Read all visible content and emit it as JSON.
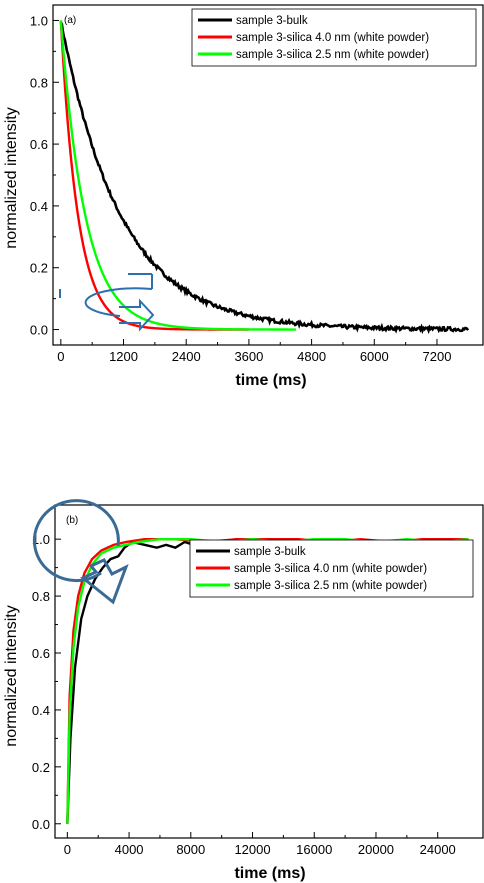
{
  "chart_data": [
    {
      "type": "line",
      "panel_label": "(a)",
      "xlabel": "time (ms)",
      "ylabel": "normalized intensity",
      "xlim": [
        -150,
        8100
      ],
      "ylim": [
        -0.05,
        1.05
      ],
      "xticks": [
        0,
        1200,
        2400,
        3600,
        4800,
        6000,
        7200
      ],
      "yticks": [
        0.0,
        0.2,
        0.4,
        0.6,
        0.8,
        1.0
      ],
      "ytick_labels": [
        "0.0",
        "0.2",
        "0.4",
        "0.6",
        "0.8",
        "1.0"
      ],
      "legend_position": "top-right",
      "series": [
        {
          "name": "sample 3-bulk",
          "color": "#000000",
          "tau": 1150,
          "x_end": 7800,
          "noise": 0.006
        },
        {
          "name": "sample 3-silica 4.0 nm (white powder)",
          "color": "#ff0000",
          "tau": 330,
          "x_end": 3600,
          "noise": 0
        },
        {
          "name": "sample 3-silica 2.5 nm (white powder)",
          "color": "#00ff00",
          "tau": 470,
          "x_end": 4500,
          "noise": 0
        }
      ]
    },
    {
      "type": "line",
      "panel_label": "(b)",
      "xlabel": "time (ms)",
      "ylabel": "normalized intensity",
      "xlim": [
        -800,
        27000
      ],
      "ylim": [
        -0.05,
        1.12
      ],
      "xticks": [
        0,
        4000,
        8000,
        12000,
        16000,
        20000,
        24000
      ],
      "yticks": [
        0.0,
        0.2,
        0.4,
        0.6,
        0.8,
        1.0
      ],
      "ytick_labels": [
        "0.0",
        "0.2",
        "0.4",
        "0.6",
        "0.8",
        "1.0"
      ],
      "legend_position": "top-right",
      "series": [
        {
          "name": "sample 3-bulk",
          "color": "#000000",
          "points": [
            [
              0,
              0.0
            ],
            [
              200,
              0.3
            ],
            [
              500,
              0.55
            ],
            [
              900,
              0.72
            ],
            [
              1300,
              0.8
            ],
            [
              1800,
              0.86
            ],
            [
              2300,
              0.9
            ],
            [
              2800,
              0.93
            ],
            [
              3300,
              0.94
            ],
            [
              3700,
              0.97
            ],
            [
              4200,
              0.99
            ],
            [
              5000,
              0.98
            ],
            [
              5800,
              0.97
            ],
            [
              6400,
              0.98
            ],
            [
              7000,
              0.97
            ],
            [
              7600,
              0.99
            ],
            [
              8200,
              0.98
            ],
            [
              9000,
              0.99
            ],
            [
              10000,
              0.99
            ],
            [
              11000,
              1.0
            ],
            [
              12000,
              0.99
            ],
            [
              13000,
              1.0
            ],
            [
              14000,
              0.99
            ],
            [
              15000,
              1.0
            ]
          ]
        },
        {
          "name": "sample 3-silica 4.0 nm (white powder)",
          "color": "#ff0000",
          "points": [
            [
              0,
              0.0
            ],
            [
              150,
              0.45
            ],
            [
              400,
              0.68
            ],
            [
              700,
              0.8
            ],
            [
              1100,
              0.88
            ],
            [
              1600,
              0.93
            ],
            [
              2200,
              0.96
            ],
            [
              3000,
              0.98
            ],
            [
              3800,
              0.99
            ],
            [
              5000,
              1.0
            ],
            [
              7000,
              1.0
            ],
            [
              9000,
              0.99
            ],
            [
              11000,
              1.0
            ],
            [
              13000,
              1.0
            ],
            [
              15000,
              1.0
            ],
            [
              17000,
              0.99
            ],
            [
              19000,
              1.0
            ],
            [
              21000,
              0.99
            ],
            [
              23000,
              1.0
            ],
            [
              26000,
              1.0
            ]
          ]
        },
        {
          "name": "sample 3-silica 2.5 nm (white powder)",
          "color": "#00ff00",
          "points": [
            [
              0,
              0.0
            ],
            [
              150,
              0.38
            ],
            [
              400,
              0.62
            ],
            [
              700,
              0.76
            ],
            [
              1100,
              0.85
            ],
            [
              1600,
              0.91
            ],
            [
              2200,
              0.95
            ],
            [
              3000,
              0.97
            ],
            [
              3800,
              0.98
            ],
            [
              4600,
              0.99
            ],
            [
              6000,
              1.0
            ],
            [
              8000,
              1.0
            ],
            [
              10000,
              0.99
            ],
            [
              12000,
              1.0
            ],
            [
              14000,
              0.99
            ],
            [
              16000,
              1.0
            ],
            [
              18000,
              1.0
            ],
            [
              20000,
              0.99
            ],
            [
              22000,
              1.0
            ],
            [
              24000,
              0.99
            ],
            [
              26000,
              1.0
            ]
          ]
        }
      ]
    }
  ]
}
